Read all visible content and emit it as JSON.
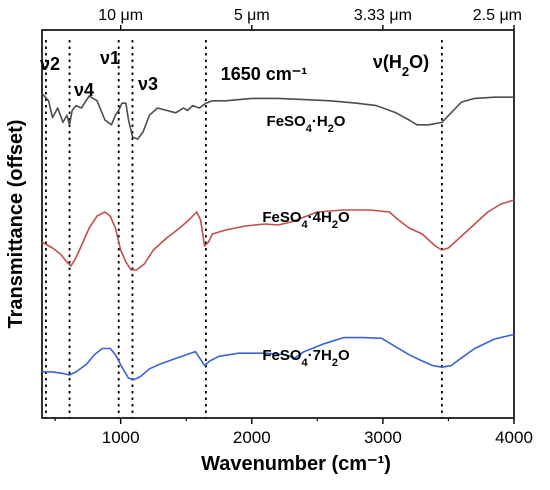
{
  "chart_data": {
    "type": "line",
    "xlabel": "Wavenumber (cm⁻¹)",
    "ylabel": "Transmittance (offset)",
    "xlim": [
      400,
      4000
    ],
    "x_ticks": [
      1000,
      2000,
      3000,
      4000
    ],
    "x_tick_labels": [
      "1000",
      "2000",
      "3000",
      "4000"
    ],
    "top_axis_ticks": [
      {
        "x": 1000,
        "label": "10 μm"
      },
      {
        "x": 2000,
        "label": "5 μm"
      },
      {
        "x": 3000,
        "label": "3.33 μm"
      },
      {
        "x": 4000,
        "label": "2.5 μm"
      }
    ],
    "y_ticks": "none",
    "grid": false,
    "reference_lines": [
      {
        "x": 430,
        "label": "ν2"
      },
      {
        "x": 610,
        "label": "ν4"
      },
      {
        "x": 985,
        "label": "ν1"
      },
      {
        "x": 1090,
        "label": "ν3"
      },
      {
        "x": 1650,
        "label": "1650 cm⁻¹"
      },
      {
        "x": 3450,
        "label": "ν(H₂O)"
      }
    ],
    "series": [
      {
        "name": "FeSO₄·H₂O",
        "color": "#4d4d4d",
        "points": [
          [
            400,
            0.92
          ],
          [
            450,
            0.86
          ],
          [
            480,
            0.72
          ],
          [
            520,
            0.8
          ],
          [
            560,
            0.68
          ],
          [
            590,
            0.74
          ],
          [
            610,
            0.66
          ],
          [
            630,
            0.78
          ],
          [
            660,
            0.82
          ],
          [
            700,
            0.8
          ],
          [
            760,
            0.9
          ],
          [
            820,
            0.86
          ],
          [
            880,
            0.7
          ],
          [
            930,
            0.66
          ],
          [
            960,
            0.74
          ],
          [
            985,
            0.78
          ],
          [
            1010,
            0.84
          ],
          [
            1040,
            0.84
          ],
          [
            1060,
            0.7
          ],
          [
            1090,
            0.56
          ],
          [
            1130,
            0.54
          ],
          [
            1170,
            0.6
          ],
          [
            1220,
            0.74
          ],
          [
            1280,
            0.8
          ],
          [
            1350,
            0.78
          ],
          [
            1420,
            0.76
          ],
          [
            1480,
            0.8
          ],
          [
            1510,
            0.78
          ],
          [
            1550,
            0.82
          ],
          [
            1600,
            0.8
          ],
          [
            1650,
            0.84
          ],
          [
            1700,
            0.86
          ],
          [
            1800,
            0.86
          ],
          [
            2000,
            0.88
          ],
          [
            2200,
            0.88
          ],
          [
            2400,
            0.87
          ],
          [
            2600,
            0.86
          ],
          [
            2800,
            0.84
          ],
          [
            2950,
            0.82
          ],
          [
            3100,
            0.76
          ],
          [
            3200,
            0.7
          ],
          [
            3260,
            0.66
          ],
          [
            3350,
            0.66
          ],
          [
            3450,
            0.68
          ],
          [
            3520,
            0.76
          ],
          [
            3600,
            0.85
          ],
          [
            3700,
            0.88
          ],
          [
            3850,
            0.89
          ],
          [
            4000,
            0.89
          ]
        ]
      },
      {
        "name": "FeSO₄·4H₂O",
        "color": "#c0504d",
        "points": [
          [
            400,
            0.3
          ],
          [
            480,
            0.24
          ],
          [
            540,
            0.18
          ],
          [
            590,
            0.1
          ],
          [
            620,
            0.06
          ],
          [
            650,
            0.12
          ],
          [
            700,
            0.26
          ],
          [
            760,
            0.44
          ],
          [
            820,
            0.56
          ],
          [
            880,
            0.6
          ],
          [
            920,
            0.56
          ],
          [
            960,
            0.44
          ],
          [
            1000,
            0.22
          ],
          [
            1040,
            0.1
          ],
          [
            1080,
            0.02
          ],
          [
            1120,
            0.02
          ],
          [
            1180,
            0.08
          ],
          [
            1250,
            0.22
          ],
          [
            1350,
            0.34
          ],
          [
            1450,
            0.44
          ],
          [
            1520,
            0.52
          ],
          [
            1580,
            0.6
          ],
          [
            1610,
            0.52
          ],
          [
            1640,
            0.26
          ],
          [
            1670,
            0.3
          ],
          [
            1700,
            0.38
          ],
          [
            1800,
            0.42
          ],
          [
            1950,
            0.46
          ],
          [
            2100,
            0.48
          ],
          [
            2200,
            0.47
          ],
          [
            2300,
            0.5
          ],
          [
            2500,
            0.6
          ],
          [
            2700,
            0.62
          ],
          [
            2900,
            0.62
          ],
          [
            3050,
            0.6
          ],
          [
            3120,
            0.52
          ],
          [
            3200,
            0.44
          ],
          [
            3300,
            0.38
          ],
          [
            3400,
            0.26
          ],
          [
            3450,
            0.22
          ],
          [
            3500,
            0.24
          ],
          [
            3600,
            0.36
          ],
          [
            3700,
            0.48
          ],
          [
            3800,
            0.6
          ],
          [
            3900,
            0.68
          ],
          [
            4000,
            0.72
          ]
        ]
      },
      {
        "name": "FeSO₄·7H₂O",
        "color": "#3a63d4",
        "points": [
          [
            400,
            0.04
          ],
          [
            480,
            0.04
          ],
          [
            560,
            0.02
          ],
          [
            610,
            0.0
          ],
          [
            660,
            0.04
          ],
          [
            740,
            0.14
          ],
          [
            800,
            0.26
          ],
          [
            860,
            0.34
          ],
          [
            920,
            0.34
          ],
          [
            960,
            0.26
          ],
          [
            1010,
            0.1
          ],
          [
            1060,
            -0.04
          ],
          [
            1100,
            -0.06
          ],
          [
            1150,
            -0.02
          ],
          [
            1220,
            0.08
          ],
          [
            1300,
            0.14
          ],
          [
            1400,
            0.2
          ],
          [
            1500,
            0.26
          ],
          [
            1570,
            0.3
          ],
          [
            1610,
            0.2
          ],
          [
            1640,
            0.12
          ],
          [
            1680,
            0.18
          ],
          [
            1750,
            0.24
          ],
          [
            1900,
            0.28
          ],
          [
            2100,
            0.28
          ],
          [
            2250,
            0.26
          ],
          [
            2330,
            0.22
          ],
          [
            2400,
            0.3
          ],
          [
            2550,
            0.4
          ],
          [
            2700,
            0.48
          ],
          [
            2850,
            0.48
          ],
          [
            2990,
            0.47
          ],
          [
            3100,
            0.36
          ],
          [
            3200,
            0.26
          ],
          [
            3300,
            0.18
          ],
          [
            3380,
            0.12
          ],
          [
            3450,
            0.1
          ],
          [
            3520,
            0.12
          ],
          [
            3600,
            0.22
          ],
          [
            3700,
            0.34
          ],
          [
            3850,
            0.46
          ],
          [
            4000,
            0.52
          ]
        ]
      }
    ]
  }
}
